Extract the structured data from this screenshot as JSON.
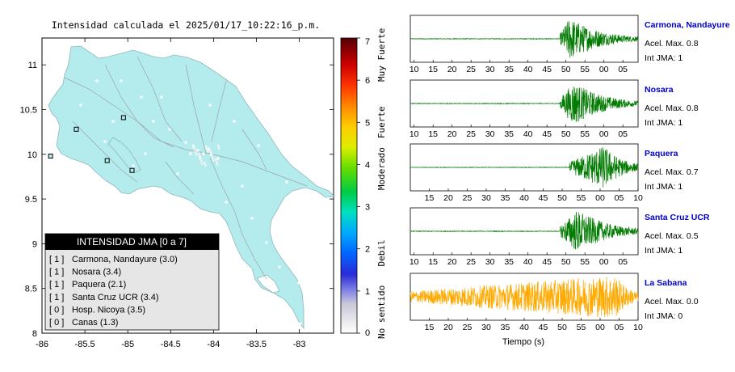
{
  "map": {
    "title": "Intensidad calculada el 2025/01/17_10:22:16_p.m.",
    "lon_ticks": [
      "-86",
      "-85.5",
      "-85",
      "-84.5",
      "-84",
      "-83.5",
      "-83"
    ],
    "lat_ticks": [
      "11",
      "10.5",
      "10",
      "9.5",
      "9",
      "8.5",
      "8"
    ],
    "xlim": [
      -86,
      -82.6
    ],
    "ylim": [
      8,
      11.3
    ],
    "land_color": "#b4ecee",
    "stations": [
      {
        "lon": -85.9,
        "lat": 9.98
      },
      {
        "lon": -85.6,
        "lat": 10.28
      },
      {
        "lon": -85.24,
        "lat": 9.93
      },
      {
        "lon": -85.05,
        "lat": 10.41
      },
      {
        "lon": -84.95,
        "lat": 9.82
      }
    ]
  },
  "legend": {
    "title": "INTENSIDAD JMA [0 a 7]",
    "items": [
      {
        "bracket": "[ 1 ]",
        "text": "Carmona, Nandayure (3.0)"
      },
      {
        "bracket": "[ 1 ]",
        "text": "Nosara (3.4)"
      },
      {
        "bracket": "[ 1 ]",
        "text": "Paquera (2.1)"
      },
      {
        "bracket": "[ 1 ]",
        "text": "Santa Cruz UCR (3.4)"
      },
      {
        "bracket": "[ 0 ]",
        "text": "Hosp. Nicoya (3.5)"
      },
      {
        "bracket": "[ 0 ]",
        "text": "Canas (1.3)"
      }
    ]
  },
  "colorbar": {
    "ticks": [
      "0",
      "1",
      "2",
      "3",
      "4",
      "5",
      "6",
      "7"
    ],
    "labels": [
      {
        "text": "No sentido",
        "value": 0.5
      },
      {
        "text": "Debil",
        "value": 1.9
      },
      {
        "text": "Moderado",
        "value": 3.9
      },
      {
        "text": "Fuerte",
        "value": 5.0
      },
      {
        "text": "Muy Fuerte",
        "value": 6.6
      }
    ]
  },
  "chart_data": {
    "type": "line",
    "xlabel": "Tiempo (s)",
    "traces": [
      {
        "name": "Carmona, Nandayure",
        "accel": "Acel. Max. 0.8",
        "int": "Int JMA: 1",
        "color": "#007a00",
        "ticks": [
          "10",
          "15",
          "20",
          "25",
          "30",
          "35",
          "40",
          "45",
          "50",
          "55",
          "00",
          "05"
        ],
        "tick_start": 10,
        "tick_step": 5,
        "x_start": 9,
        "x_end": 69,
        "onset": 48.5,
        "peak": 51,
        "amp": 1.0,
        "decay": 8,
        "noise": 0.015
      },
      {
        "name": "Nosara",
        "accel": "Acel. Max. 0.8",
        "int": "Int JMA: 1",
        "color": "#007a00",
        "ticks": [
          "10",
          "15",
          "20",
          "25",
          "30",
          "35",
          "40",
          "45",
          "50",
          "55",
          "00",
          "05"
        ],
        "tick_start": 10,
        "tick_step": 5,
        "x_start": 9,
        "x_end": 69,
        "onset": 48.5,
        "peak": 52,
        "amp": 1.0,
        "decay": 8,
        "noise": 0.015
      },
      {
        "name": "Paquera",
        "accel": "Acel. Max. 0.7",
        "int": "Int JMA: 1",
        "color": "#007a00",
        "ticks": [
          "15",
          "20",
          "25",
          "30",
          "35",
          "40",
          "45",
          "50",
          "55",
          "00",
          "05",
          "10"
        ],
        "tick_start": 15,
        "tick_step": 5,
        "x_start": 10,
        "x_end": 70,
        "onset": 52,
        "peak": 61,
        "amp": 1.0,
        "decay": 5,
        "noise": 0.012
      },
      {
        "name": "Santa Cruz UCR",
        "accel": "Acel. Max. 0.5",
        "int": "Int JMA: 1",
        "color": "#007a00",
        "ticks": [
          "10",
          "15",
          "20",
          "25",
          "30",
          "35",
          "40",
          "45",
          "50",
          "55",
          "00",
          "05"
        ],
        "tick_start": 10,
        "tick_step": 5,
        "x_start": 9,
        "x_end": 69,
        "onset": 48.5,
        "peak": 53,
        "amp": 1.0,
        "decay": 8,
        "noise": 0.015
      },
      {
        "name": "La Sabana",
        "accel": "Acel. Max. 0.0",
        "int": "Int JMA: 0",
        "color": "#ffaa00",
        "ticks": [
          "15",
          "20",
          "25",
          "30",
          "35",
          "40",
          "45",
          "50",
          "55",
          "00",
          "05",
          "10"
        ],
        "tick_start": 15,
        "tick_step": 5,
        "x_start": 10,
        "x_end": 70,
        "onset": 10,
        "peak": 64,
        "amp": 1.0,
        "decay": 4,
        "noise": 0.22
      }
    ]
  }
}
